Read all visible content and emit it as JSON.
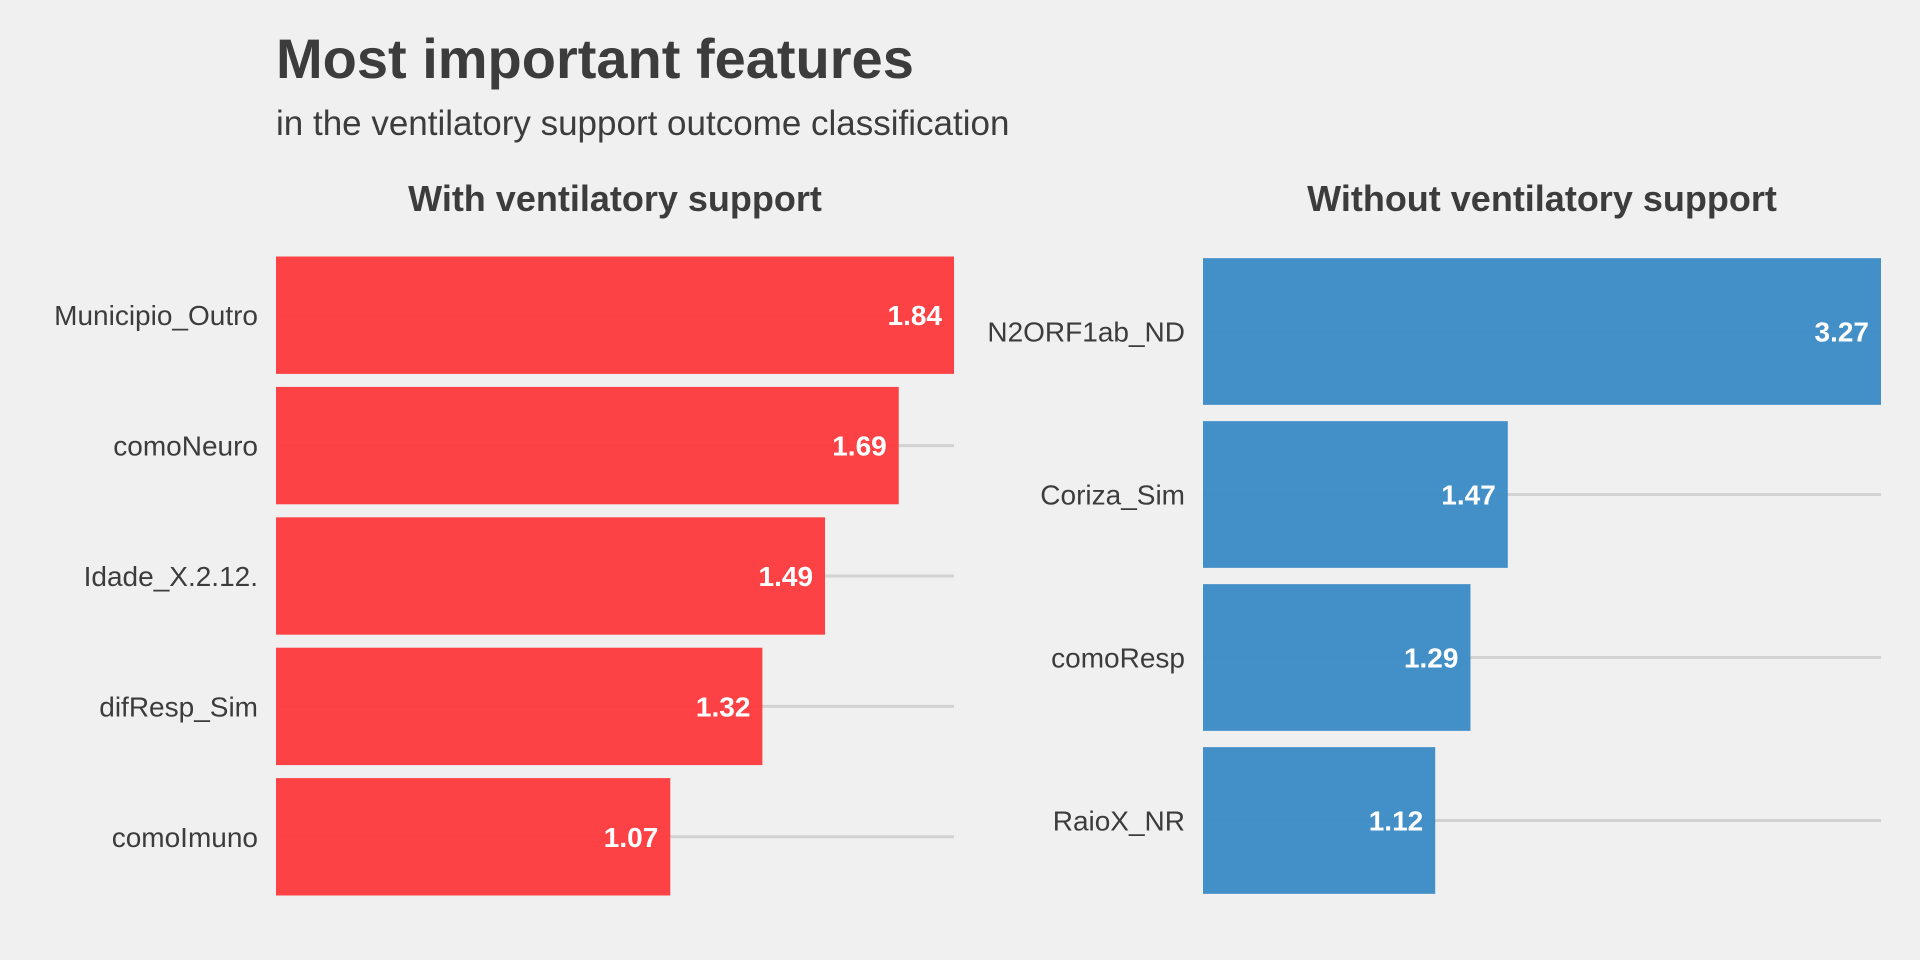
{
  "title": "Most important features",
  "subtitle": "in the ventilatory support outcome classification",
  "chart_data": [
    {
      "type": "bar",
      "orientation": "horizontal",
      "title": "With ventilatory support",
      "color": "#fc3c3f",
      "categories": [
        "Municipio_Outro",
        "comoNeuro",
        "Idade_X.2.12.",
        "difResp_Sim",
        "comoImuno"
      ],
      "values": [
        1.84,
        1.69,
        1.49,
        1.32,
        1.07
      ],
      "grid": true
    },
    {
      "type": "bar",
      "orientation": "horizontal",
      "title": "Without ventilatory support",
      "color": "#3d8bc6",
      "categories": [
        "N2ORF1ab_ND",
        "Coriza_Sim",
        "comoResp",
        "RaioX_NR"
      ],
      "values": [
        3.27,
        1.47,
        1.29,
        1.12
      ],
      "grid": true
    }
  ]
}
